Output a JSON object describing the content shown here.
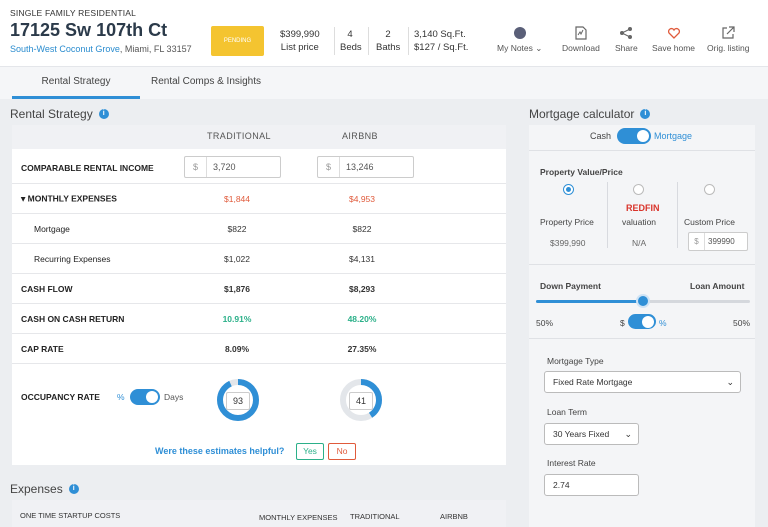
{
  "header": {
    "property_type": "SINGLE FAMILY RESIDENTIAL",
    "address": "17125 Sw 107th Ct",
    "neighborhood": "South-West Coconut Grove",
    "city_state": ", Miami, FL 33157",
    "status_badge": "PENDING",
    "price": "$399,990",
    "price_label": "List price",
    "beds": "4",
    "beds_label": "Beds",
    "baths": "2",
    "baths_label": "Baths",
    "sqft": "3,140 Sq.Ft.",
    "price_per_sqft": "$127 / Sq.Ft.",
    "actions": {
      "notes": "My Notes",
      "download": "Download",
      "share": "Share",
      "save": "Save home",
      "orig": "Orig. listing"
    }
  },
  "tabs": [
    "Rental Strategy",
    "Rental Comps & Insights"
  ],
  "rental": {
    "title": "Rental Strategy",
    "col_traditional": "TRADITIONAL",
    "col_airbnb": "AIRBNB",
    "income_label": "COMPARABLE RENTAL INCOME",
    "currency": "$",
    "income_traditional": "3,720",
    "income_airbnb": "13,246",
    "rows": [
      {
        "label": "▾ MONTHLY EXPENSES",
        "trad": "$1,844",
        "air": "$4,953"
      },
      {
        "label": "Mortgage",
        "trad": "$822",
        "air": "$822"
      },
      {
        "label": "Recurring Expenses",
        "trad": "$1,022",
        "air": "$4,131"
      },
      {
        "label": "CASH FLOW",
        "trad": "$1,876",
        "air": "$8,293"
      },
      {
        "label": "CASH ON CASH RETURN",
        "trad": "10.91%",
        "air": "48.20%"
      },
      {
        "label": "CAP RATE",
        "trad": "8.09%",
        "air": "27.35%"
      }
    ],
    "occupancy_label": "OCCUPANCY RATE",
    "occ_pct": "%",
    "occ_days": "Days",
    "occ_traditional": "93",
    "occ_airbnb": "41",
    "helpful_q": "Were these estimates helpful?",
    "yes": "Yes",
    "no": "No"
  },
  "expenses": {
    "title": "Expenses",
    "col_startup": "ONE TIME STARTUP COSTS",
    "col_monthly": "MONTHLY EXPENSES",
    "col_traditional": "TRADITIONAL",
    "col_airbnb": "AIRBNB"
  },
  "mortgage": {
    "title": "Mortgage calculator",
    "cash": "Cash",
    "mortgage": "Mortgage",
    "property_value_label": "Property Value/Price",
    "opt_property_price": "Property Price",
    "opt_redfin_logo": "REDFIN",
    "opt_redfin": "valuation",
    "opt_custom": "Custom Price",
    "property_price": "$399,990",
    "redfin_value": "N/A",
    "custom_currency": "$",
    "custom_value": "399990",
    "down_payment_label": "Down Payment",
    "loan_amount_label": "Loan Amount",
    "down_payment_pct": "50%",
    "loan_amount_pct": "50%",
    "dollar": "$",
    "percent": "%",
    "mortgage_type_label": "Mortgage Type",
    "mortgage_type": "Fixed Rate Mortgage",
    "loan_term_label": "Loan Term",
    "loan_term": "30 Years Fixed",
    "interest_rate_label": "Interest Rate",
    "interest_rate": "2.74"
  },
  "colors": {
    "accent": "#2f8fd6",
    "negative": "#e05a3b",
    "positive": "#2bb089",
    "badge": "#f4c430"
  }
}
